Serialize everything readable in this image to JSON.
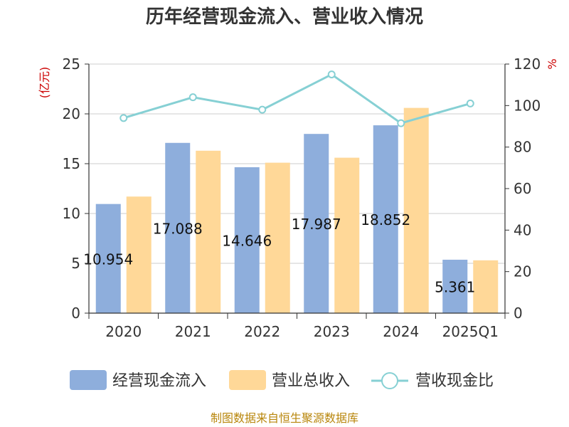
{
  "chart_data": {
    "type": "bar",
    "title": "历年经营现金流入、营业收入情况",
    "categories": [
      "2020",
      "2021",
      "2022",
      "2023",
      "2024",
      "2025Q1"
    ],
    "series": [
      {
        "name": "经营现金流入",
        "type": "bar",
        "axis": "left",
        "color": "#8eaedc",
        "values": [
          10.954,
          17.088,
          14.646,
          17.987,
          18.852,
          5.361
        ]
      },
      {
        "name": "营业总收入",
        "type": "bar",
        "axis": "left",
        "color": "#ffd898",
        "values": [
          11.7,
          16.3,
          15.1,
          15.6,
          20.6,
          5.3
        ]
      },
      {
        "name": "营收现金比",
        "type": "line",
        "axis": "right",
        "color": "#86d0d4",
        "values": [
          94,
          104,
          98,
          115,
          91.5,
          101
        ]
      }
    ],
    "data_labels": [
      "10.954",
      "17.088",
      "14.646",
      "17.987",
      "18.852",
      "5.361"
    ],
    "y_left": {
      "unit": "(亿元)",
      "ylim": [
        0,
        25
      ],
      "ticks": [
        0,
        5,
        10,
        15,
        20,
        25
      ]
    },
    "y_right": {
      "unit": "%",
      "ylim": [
        0,
        120
      ],
      "ticks": [
        0,
        20,
        40,
        60,
        80,
        100,
        120
      ]
    },
    "grid": true,
    "legend": "bottom"
  },
  "source_text": "制图数据来自恒生聚源数据库"
}
